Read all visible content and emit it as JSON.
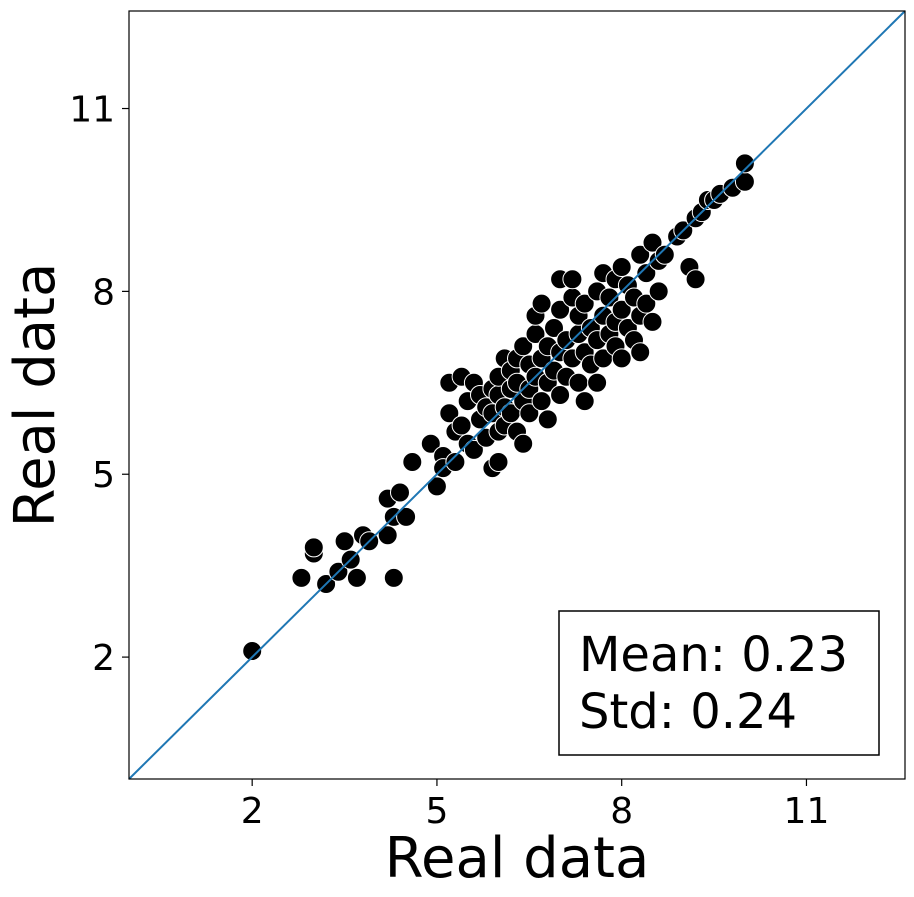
{
  "chart_data": {
    "type": "scatter",
    "xlabel": "Real data",
    "ylabel": "Real data",
    "xlim": [
      0.0,
      12.6
    ],
    "ylim": [
      0.0,
      12.6
    ],
    "x_ticks": [
      2,
      5,
      8,
      11
    ],
    "y_ticks": [
      2,
      5,
      8,
      11
    ],
    "grid": false,
    "legend": "none",
    "marker_color": "#000000",
    "marker_edge_color": "#ffffff",
    "line_color": "#1f77b4",
    "identity_line": true,
    "annotation": {
      "mean_text": "Mean: 0.23",
      "std_text": "Std: 0.24",
      "placement": "bottom-right"
    },
    "points": [
      [
        2.0,
        2.1
      ],
      [
        2.8,
        3.3
      ],
      [
        3.0,
        3.7
      ],
      [
        3.0,
        3.8
      ],
      [
        3.2,
        3.2
      ],
      [
        3.4,
        3.4
      ],
      [
        3.5,
        3.9
      ],
      [
        3.6,
        3.6
      ],
      [
        3.7,
        3.3
      ],
      [
        3.8,
        4.0
      ],
      [
        3.9,
        3.9
      ],
      [
        4.2,
        4.6
      ],
      [
        4.2,
        4.0
      ],
      [
        4.3,
        3.3
      ],
      [
        4.3,
        4.3
      ],
      [
        4.4,
        4.7
      ],
      [
        4.5,
        4.3
      ],
      [
        4.6,
        5.2
      ],
      [
        4.9,
        5.5
      ],
      [
        5.0,
        4.8
      ],
      [
        5.1,
        5.3
      ],
      [
        5.1,
        5.1
      ],
      [
        5.2,
        6.0
      ],
      [
        5.2,
        6.5
      ],
      [
        5.3,
        5.7
      ],
      [
        5.3,
        5.2
      ],
      [
        5.4,
        6.6
      ],
      [
        5.4,
        5.8
      ],
      [
        5.5,
        5.5
      ],
      [
        5.5,
        6.2
      ],
      [
        5.6,
        6.5
      ],
      [
        5.6,
        5.4
      ],
      [
        5.7,
        5.9
      ],
      [
        5.7,
        6.3
      ],
      [
        5.8,
        5.6
      ],
      [
        5.8,
        6.1
      ],
      [
        5.9,
        5.1
      ],
      [
        5.9,
        6.4
      ],
      [
        5.9,
        6.0
      ],
      [
        6.0,
        5.2
      ],
      [
        6.0,
        6.3
      ],
      [
        6.0,
        5.7
      ],
      [
        6.0,
        6.6
      ],
      [
        6.1,
        6.9
      ],
      [
        6.1,
        6.1
      ],
      [
        6.1,
        5.8
      ],
      [
        6.2,
        6.4
      ],
      [
        6.2,
        6.7
      ],
      [
        6.2,
        6.0
      ],
      [
        6.3,
        5.7
      ],
      [
        6.3,
        6.9
      ],
      [
        6.3,
        6.5
      ],
      [
        6.4,
        7.1
      ],
      [
        6.4,
        6.2
      ],
      [
        6.4,
        5.5
      ],
      [
        6.5,
        6.8
      ],
      [
        6.5,
        6.4
      ],
      [
        6.5,
        6.0
      ],
      [
        6.6,
        7.3
      ],
      [
        6.6,
        6.6
      ],
      [
        6.6,
        7.6
      ],
      [
        6.7,
        6.2
      ],
      [
        6.7,
        6.9
      ],
      [
        6.7,
        7.8
      ],
      [
        6.8,
        6.5
      ],
      [
        6.8,
        7.1
      ],
      [
        6.8,
        5.9
      ],
      [
        6.9,
        7.4
      ],
      [
        6.9,
        6.7
      ],
      [
        7.0,
        8.2
      ],
      [
        7.0,
        7.0
      ],
      [
        7.0,
        6.3
      ],
      [
        7.0,
        7.7
      ],
      [
        7.1,
        6.6
      ],
      [
        7.1,
        7.2
      ],
      [
        7.2,
        7.9
      ],
      [
        7.2,
        6.9
      ],
      [
        7.2,
        8.2
      ],
      [
        7.3,
        7.3
      ],
      [
        7.3,
        6.5
      ],
      [
        7.3,
        7.6
      ],
      [
        7.4,
        7.0
      ],
      [
        7.4,
        6.2
      ],
      [
        7.4,
        7.8
      ],
      [
        7.5,
        7.4
      ],
      [
        7.5,
        6.8
      ],
      [
        7.6,
        8.0
      ],
      [
        7.6,
        7.2
      ],
      [
        7.6,
        6.5
      ],
      [
        7.7,
        7.6
      ],
      [
        7.7,
        8.3
      ],
      [
        7.7,
        6.9
      ],
      [
        7.8,
        7.3
      ],
      [
        7.8,
        7.9
      ],
      [
        7.9,
        7.1
      ],
      [
        7.9,
        8.2
      ],
      [
        7.9,
        7.5
      ],
      [
        8.0,
        8.4
      ],
      [
        8.0,
        7.7
      ],
      [
        8.0,
        6.9
      ],
      [
        8.1,
        7.4
      ],
      [
        8.1,
        8.1
      ],
      [
        8.2,
        7.9
      ],
      [
        8.2,
        7.2
      ],
      [
        8.3,
        8.6
      ],
      [
        8.3,
        7.6
      ],
      [
        8.3,
        7.0
      ],
      [
        8.4,
        8.3
      ],
      [
        8.4,
        7.8
      ],
      [
        8.5,
        8.8
      ],
      [
        8.5,
        7.5
      ],
      [
        8.6,
        8.5
      ],
      [
        8.6,
        8.0
      ],
      [
        8.7,
        8.6
      ],
      [
        8.9,
        8.9
      ],
      [
        9.0,
        9.0
      ],
      [
        9.1,
        8.4
      ],
      [
        9.2,
        8.2
      ],
      [
        9.2,
        9.2
      ],
      [
        9.3,
        9.3
      ],
      [
        9.4,
        9.5
      ],
      [
        9.5,
        9.5
      ],
      [
        9.6,
        9.6
      ],
      [
        9.8,
        9.7
      ],
      [
        10.0,
        9.8
      ],
      [
        10.0,
        10.1
      ]
    ]
  }
}
